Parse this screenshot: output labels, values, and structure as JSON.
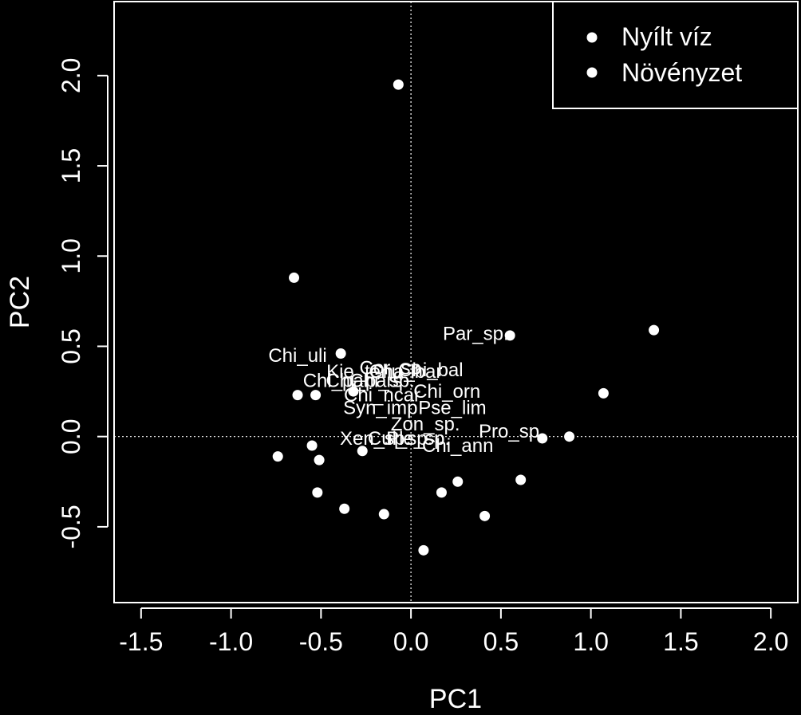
{
  "chart_data": {
    "type": "scatter",
    "title": "",
    "xlabel": "PC1",
    "ylabel": "PC2",
    "xlim": [
      -1.65,
      2.15
    ],
    "ylim": [
      -0.92,
      2.41
    ],
    "xticks": [
      "-1.5",
      "-1.0",
      "-0.5",
      "0.0",
      "0.5",
      "1.0",
      "1.5",
      "2.0"
    ],
    "yticks": [
      "-0.5",
      "0.0",
      "0.5",
      "1.0",
      "1.5",
      "2.0"
    ],
    "xtick_values": [
      -1.5,
      -1.0,
      -0.5,
      0.0,
      0.5,
      1.0,
      1.5,
      2.0
    ],
    "ytick_values": [
      -0.5,
      0.0,
      0.5,
      1.0,
      1.5,
      2.0
    ],
    "reference_lines": {
      "x": 0.0,
      "y": 0.0,
      "style": "dotted"
    },
    "background": "#000000",
    "foreground": "#ffffff",
    "legend": {
      "position": "top-right",
      "entries": [
        {
          "label": "Nyílt víz",
          "marker": "filled-circle"
        },
        {
          "label": "Növényzet",
          "marker": "filled-circle"
        }
      ]
    },
    "series": [
      {
        "marker": "filled-circle",
        "points": [
          {
            "x": -0.07,
            "y": 1.95
          },
          {
            "x": -0.65,
            "y": 0.88
          },
          {
            "x": 1.35,
            "y": 0.59
          },
          {
            "x": 0.55,
            "y": 0.56
          },
          {
            "x": -0.39,
            "y": 0.46
          },
          {
            "x": -0.63,
            "y": 0.23
          },
          {
            "x": -0.53,
            "y": 0.23
          },
          {
            "x": 1.07,
            "y": 0.24
          },
          {
            "x": -0.32,
            "y": 0.25
          },
          {
            "x": 0.88,
            "y": 0.0
          },
          {
            "x": 0.73,
            "y": -0.01
          },
          {
            "x": -0.55,
            "y": -0.05
          },
          {
            "x": -0.74,
            "y": -0.11
          },
          {
            "x": -0.51,
            "y": -0.13
          },
          {
            "x": -0.27,
            "y": -0.08
          },
          {
            "x": 0.61,
            "y": -0.24
          },
          {
            "x": 0.26,
            "y": -0.25
          },
          {
            "x": 0.17,
            "y": -0.31
          },
          {
            "x": -0.52,
            "y": -0.31
          },
          {
            "x": -0.37,
            "y": -0.4
          },
          {
            "x": -0.15,
            "y": -0.43
          },
          {
            "x": 0.41,
            "y": -0.44
          },
          {
            "x": 0.07,
            "y": -0.63
          }
        ]
      }
    ],
    "annotations": [
      {
        "text": "Par_sp.",
        "x": 0.36,
        "y": 0.57
      },
      {
        "text": "Chi_uli",
        "x": -0.63,
        "y": 0.45
      },
      {
        "text": "Kie_tenu",
        "x": -0.26,
        "y": 0.36
      },
      {
        "text": "Cor_sp.",
        "x": -0.1,
        "y": 0.38
      },
      {
        "text": "Cha_bar",
        "x": -0.03,
        "y": 0.36
      },
      {
        "text": "Chi_bal",
        "x": 0.11,
        "y": 0.37
      },
      {
        "text": "Chi_pal",
        "x": -0.42,
        "y": 0.31
      },
      {
        "text": "Chi_pars",
        "x": -0.26,
        "y": 0.31
      },
      {
        "text": "Chi_sp.",
        "x": -0.16,
        "y": 0.31
      },
      {
        "text": "Chi_orn",
        "x": 0.2,
        "y": 0.25
      },
      {
        "text": "Chi_ncar",
        "x": -0.16,
        "y": 0.23
      },
      {
        "text": "Syn_imp",
        "x": -0.17,
        "y": 0.16
      },
      {
        "text": "Pse_lim",
        "x": 0.23,
        "y": 0.16
      },
      {
        "text": "Zon_sp.",
        "x": 0.08,
        "y": 0.07
      },
      {
        "text": "Pro_sp.",
        "x": 0.56,
        "y": 0.03
      },
      {
        "text": "Xen_sp.",
        "x": -0.2,
        "y": -0.01
      },
      {
        "text": "Cul_sp.",
        "x": -0.06,
        "y": -0.01
      },
      {
        "text": "Ple_sp.",
        "x": 0.04,
        "y": -0.01
      },
      {
        "text": "Chi_ann",
        "x": 0.26,
        "y": -0.05
      }
    ]
  }
}
